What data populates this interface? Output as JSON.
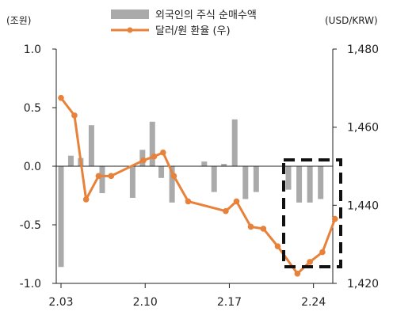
{
  "chart_data": {
    "type": "bar+line",
    "left_unit": "(조원)",
    "right_unit": "(USD/KRW)",
    "legend": [
      {
        "label": "외국인의 주식 순매수액",
        "kind": "bar",
        "color": "#aaaaaa"
      },
      {
        "label": "달러/원 환율 (우)",
        "kind": "line",
        "color": "#e8813a"
      }
    ],
    "y_left": {
      "min": -1.0,
      "max": 1.0,
      "ticks": [
        "1.0",
        "0.5",
        "0.0",
        "-0.5",
        "-1.0"
      ],
      "tick_values": [
        1.0,
        0.5,
        0.0,
        -0.5,
        -1.0
      ]
    },
    "y_right": {
      "min": 1420,
      "max": 1480,
      "ticks": [
        "1,480",
        "1,460",
        "1,440",
        "1,420"
      ],
      "tick_values": [
        1480,
        1460,
        1440,
        1420
      ]
    },
    "x_ticks": [
      {
        "label": "2.03",
        "index": 0
      },
      {
        "label": "2.10",
        "index": 5
      },
      {
        "label": "2.17",
        "index": 10
      },
      {
        "label": "2.24",
        "index": 15
      }
    ],
    "n_points": 19,
    "bar_series": {
      "name": "외국인의 주식 순매수액",
      "values": [
        -0.86,
        0.09,
        0.07,
        0.35,
        -0.23,
        0.0,
        -0.27,
        0.14,
        0.38,
        -0.1,
        -0.31,
        0.04,
        -0.22,
        0.02,
        0.4,
        -0.28,
        -0.22,
        0.0,
        -0.2,
        -0.31,
        -0.31,
        -0.28
      ]
    },
    "bars": [
      {
        "i": 0,
        "v": -0.86
      },
      {
        "i": 0.55,
        "v": 0.09
      },
      {
        "i": 1.1,
        "v": 0.07
      },
      {
        "i": 1.7,
        "v": 0.35
      },
      {
        "i": 2.3,
        "v": -0.23
      },
      {
        "i": 4.0,
        "v": -0.27
      },
      {
        "i": 4.55,
        "v": 0.14
      },
      {
        "i": 5.1,
        "v": 0.38
      },
      {
        "i": 5.6,
        "v": -0.1
      },
      {
        "i": 6.2,
        "v": -0.31
      },
      {
        "i": 8.0,
        "v": 0.04
      },
      {
        "i": 8.55,
        "v": -0.22
      },
      {
        "i": 9.1,
        "v": 0.02
      },
      {
        "i": 9.7,
        "v": 0.4
      },
      {
        "i": 10.3,
        "v": -0.28
      },
      {
        "i": 10.9,
        "v": -0.22
      },
      {
        "i": 12.7,
        "v": -0.2
      },
      {
        "i": 13.3,
        "v": -0.31
      },
      {
        "i": 13.9,
        "v": -0.31
      },
      {
        "i": 14.5,
        "v": -0.28
      }
    ],
    "line_series": {
      "name": "달러/원 환율 (우)",
      "points": [
        {
          "i": 0,
          "v": 1467.5
        },
        {
          "i": 0.75,
          "v": 1463
        },
        {
          "i": 1.4,
          "v": 1441.5
        },
        {
          "i": 2.1,
          "v": 1447.5
        },
        {
          "i": 2.8,
          "v": 1447.5
        },
        {
          "i": 4.6,
          "v": 1451.5
        },
        {
          "i": 5.2,
          "v": 1452.5
        },
        {
          "i": 5.7,
          "v": 1453.5
        },
        {
          "i": 6.3,
          "v": 1447.5
        },
        {
          "i": 7.1,
          "v": 1441
        },
        {
          "i": 9.2,
          "v": 1438.5
        },
        {
          "i": 9.8,
          "v": 1441
        },
        {
          "i": 10.6,
          "v": 1434.5
        },
        {
          "i": 11.3,
          "v": 1434
        },
        {
          "i": 12.1,
          "v": 1429.5
        },
        {
          "i": 13.2,
          "v": 1422.5
        },
        {
          "i": 13.9,
          "v": 1425.5
        },
        {
          "i": 14.6,
          "v": 1428
        },
        {
          "i": 15.3,
          "v": 1436.5
        }
      ]
    },
    "highlight": {
      "style": "dashed-box",
      "from_index": 12.3,
      "to_index": 15.8,
      "top": 0.03,
      "bottom": -0.86
    }
  }
}
